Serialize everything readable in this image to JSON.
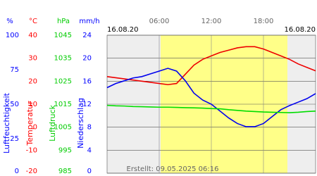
{
  "chart_data": {
    "type": "line",
    "dates": [
      "16.08.20",
      "16.08.20"
    ],
    "footer": "Erstellt: 09.05.2025 06:16",
    "xlim": [
      0,
      24
    ],
    "xticks": [
      {
        "value": 6,
        "label": "06:00"
      },
      {
        "value": 12,
        "label": "12:00"
      },
      {
        "value": 18,
        "label": "18:00"
      }
    ],
    "x": [
      0,
      1,
      2,
      3,
      4,
      5,
      6,
      7,
      8,
      9,
      10,
      11,
      12,
      13,
      14,
      15,
      16,
      17,
      18,
      19,
      20,
      21,
      22,
      23,
      24
    ],
    "axes": [
      {
        "unit": "%",
        "label": "Luftfeuchtigkeit",
        "color": "#0000ff",
        "ylim": [
          0,
          100
        ],
        "yticks": [
          0,
          25,
          50,
          75,
          100
        ]
      },
      {
        "unit": "°C",
        "label": "Temperatur",
        "color": "#ff0000",
        "ylim": [
          -20,
          40
        ],
        "yticks": [
          -20,
          -10,
          0,
          10,
          20,
          30,
          40
        ]
      },
      {
        "unit": "hPa",
        "label": "Luftdruck",
        "color": "#00cc00",
        "ylim": [
          985,
          1045
        ],
        "yticks": [
          985,
          995,
          1005,
          1015,
          1025,
          1035,
          1045
        ]
      },
      {
        "unit": "mm/h",
        "label": "Niederschlag",
        "color": "#0000ff",
        "ylim": [
          0,
          24
        ],
        "yticks": [
          0,
          4,
          8,
          12,
          16,
          20,
          24
        ]
      }
    ],
    "series": [
      {
        "axis": 1,
        "color": "#ee0000",
        "values": [
          22,
          21.5,
          21,
          20.5,
          20,
          19.5,
          19,
          18.5,
          19,
          23,
          27,
          29.5,
          31,
          32.5,
          33.5,
          34.5,
          35,
          35,
          34,
          32.5,
          31,
          29.5,
          27.5,
          26,
          24.5
        ]
      },
      {
        "axis": 0,
        "color": "#0000ee",
        "values": [
          62,
          65,
          67,
          69,
          70,
          72,
          74,
          76,
          74,
          67,
          58,
          53,
          50,
          45,
          40,
          36,
          33.7,
          33.7,
          36,
          41,
          46,
          49,
          51.5,
          54,
          57.7
        ]
      },
      {
        "axis": 2,
        "color": "#00dd00",
        "values": [
          1014.5,
          1014.3,
          1014.2,
          1014,
          1013.9,
          1013.8,
          1013.7,
          1013.7,
          1013.6,
          1013.5,
          1013.4,
          1013.3,
          1013.1,
          1013,
          1012.6,
          1012.3,
          1012,
          1011.8,
          1011.6,
          1011.5,
          1011.4,
          1011.3,
          1011.5,
          1011.8,
          1012
        ]
      }
    ]
  }
}
